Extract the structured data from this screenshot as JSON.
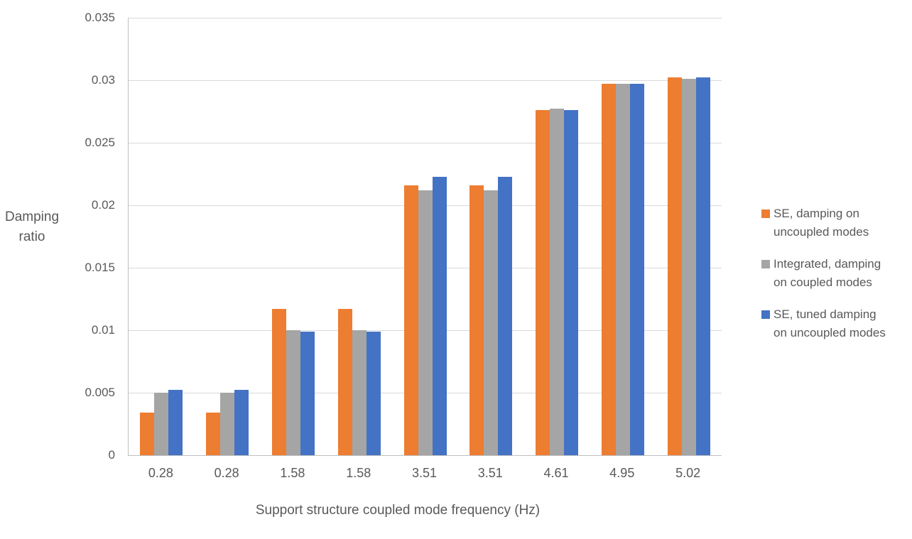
{
  "chart_data": {
    "type": "bar",
    "title": "",
    "xlabel": "Support structure coupled mode frequency (Hz)",
    "ylabel": "Damping ratio",
    "ylabel_lines": [
      "Damping",
      "ratio"
    ],
    "categories": [
      "0.28",
      "0.28",
      "1.58",
      "1.58",
      "3.51",
      "3.51",
      "4.61",
      "4.95",
      "5.02"
    ],
    "series": [
      {
        "name": "SE, damping on uncoupled modes",
        "name_lines": [
          "SE, damping on",
          "uncoupled modes"
        ],
        "color": "#ED7D31",
        "values": [
          0.0034,
          0.0034,
          0.0117,
          0.0117,
          0.0216,
          0.0216,
          0.0276,
          0.0297,
          0.0302
        ]
      },
      {
        "name": "Integrated, damping on coupled modes",
        "name_lines": [
          "Integrated, damping",
          "on coupled modes"
        ],
        "color": "#A5A5A5",
        "values": [
          0.005,
          0.005,
          0.01,
          0.01,
          0.0212,
          0.0212,
          0.0277,
          0.0297,
          0.0301
        ]
      },
      {
        "name": "SE, tuned damping on uncoupled modes",
        "name_lines": [
          "SE, tuned damping",
          "on uncoupled modes"
        ],
        "color": "#4472C4",
        "values": [
          0.0052,
          0.0052,
          0.0099,
          0.0099,
          0.0223,
          0.0223,
          0.0276,
          0.0297,
          0.0302
        ]
      }
    ],
    "ylim": [
      0,
      0.035
    ],
    "ytick_labels": [
      "0",
      "0.005",
      "0.01",
      "0.015",
      "0.02",
      "0.025",
      "0.03",
      "0.035"
    ],
    "grid": true,
    "legend_position": "right",
    "colors": {
      "gridline": "#D9D9D9",
      "axis": "#BFBFBF",
      "text": "#595959"
    }
  }
}
